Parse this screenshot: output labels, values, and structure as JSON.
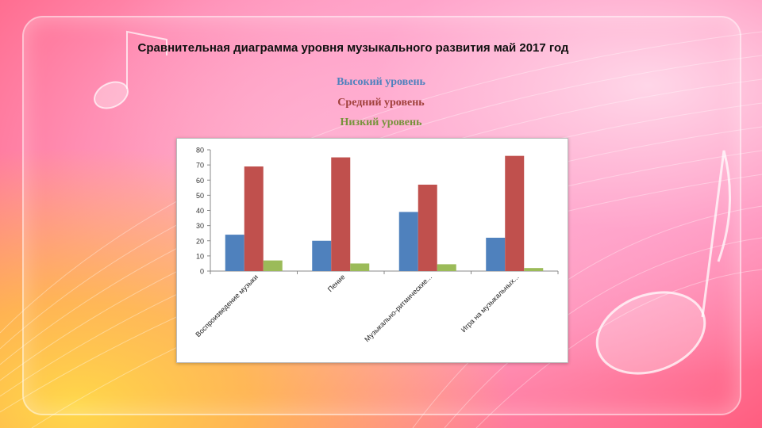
{
  "title": "Сравнительная диаграмма уровня музыкального развития май 2017 год",
  "legend": [
    {
      "label": "Высокий уровень",
      "color": "#4f81bd"
    },
    {
      "label": "Средний уровень",
      "color": "#c0504d"
    },
    {
      "label": "Низкий уровень",
      "color": "#9bbb59"
    }
  ],
  "chart_data": {
    "type": "bar",
    "categories": [
      "Воспроизведение музыки",
      "Пение",
      "Музыкально-ритмические...",
      "Игра на музыкальных..."
    ],
    "series": [
      {
        "name": "Высокий уровень",
        "color": "#4f81bd",
        "values": [
          24,
          20,
          39,
          22
        ]
      },
      {
        "name": "Средний уровень",
        "color": "#c0504d",
        "values": [
          69,
          75,
          57,
          76
        ]
      },
      {
        "name": "Низкий уровень",
        "color": "#9bbb59",
        "values": [
          7,
          5,
          4.5,
          2
        ]
      }
    ],
    "ylim": [
      0,
      80
    ],
    "yticks": [
      0,
      10,
      20,
      30,
      40,
      50,
      60,
      70,
      80
    ],
    "grid": false,
    "legend_position": "above chart"
  }
}
